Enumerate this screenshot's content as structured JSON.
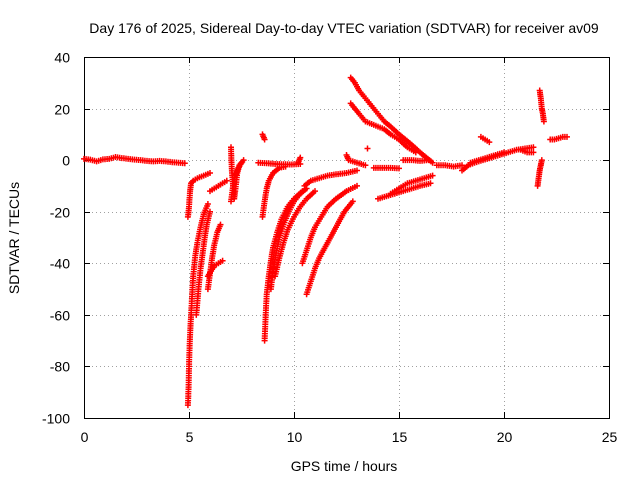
{
  "chart_data": {
    "type": "scatter",
    "title": "Day 176 of 2025, Sidereal Day-to-day VTEC variation (SDTVAR) for receiver av09",
    "xlabel": "GPS time / hours",
    "ylabel": "SDTVAR / TECUs",
    "xlim": [
      0,
      25
    ],
    "ylim": [
      -100,
      40
    ],
    "xticks": [
      "0",
      "5",
      "10",
      "15",
      "20",
      "25"
    ],
    "yticks": [
      "-100",
      "-80",
      "-60",
      "-40",
      "-20",
      "0",
      "20",
      "40"
    ],
    "grid": true,
    "marker": "+",
    "color": "#ff0000",
    "segments": [
      {
        "name": "baseline-1",
        "points": [
          [
            0.0,
            0.5
          ],
          [
            0.3,
            0.2
          ],
          [
            0.6,
            -0.5
          ],
          [
            0.9,
            0.3
          ],
          [
            1.2,
            0.5
          ],
          [
            1.5,
            1.2
          ],
          [
            1.8,
            0.8
          ],
          [
            2.1,
            0.5
          ],
          [
            2.4,
            0.2
          ],
          [
            2.7,
            0.0
          ],
          [
            3.0,
            -0.3
          ],
          [
            3.3,
            -0.5
          ],
          [
            3.6,
            -0.3
          ],
          [
            3.9,
            -0.5
          ],
          [
            4.2,
            -0.8
          ],
          [
            4.5,
            -1.0
          ],
          [
            4.8,
            -1.2
          ]
        ]
      },
      {
        "name": "dip-5h",
        "points": [
          [
            4.95,
            -95
          ],
          [
            4.98,
            -88
          ],
          [
            5.0,
            -80
          ],
          [
            5.03,
            -72
          ],
          [
            5.06,
            -66
          ],
          [
            5.1,
            -60
          ],
          [
            5.15,
            -52
          ],
          [
            5.2,
            -45
          ],
          [
            5.3,
            -37
          ],
          [
            5.4,
            -32
          ],
          [
            5.55,
            -26
          ],
          [
            5.7,
            -21
          ],
          [
            5.9,
            -17
          ]
        ]
      },
      {
        "name": "rise-5h",
        "points": [
          [
            4.95,
            -22
          ],
          [
            5.0,
            -18
          ],
          [
            5.05,
            -12
          ],
          [
            5.1,
            -9
          ],
          [
            5.2,
            -8
          ],
          [
            5.4,
            -7
          ],
          [
            5.7,
            -6
          ],
          [
            6.0,
            -5
          ]
        ]
      },
      {
        "name": "arc-5h-b",
        "points": [
          [
            5.35,
            -60
          ],
          [
            5.45,
            -50
          ],
          [
            5.55,
            -42
          ],
          [
            5.65,
            -36
          ],
          [
            5.75,
            -30
          ],
          [
            5.85,
            -25
          ],
          [
            6.0,
            -20
          ]
        ]
      },
      {
        "name": "arc-6h",
        "points": [
          [
            5.9,
            -50
          ],
          [
            6.0,
            -44
          ],
          [
            6.1,
            -38
          ],
          [
            6.2,
            -33
          ],
          [
            6.35,
            -28
          ],
          [
            6.5,
            -25
          ]
        ]
      },
      {
        "name": "arc-6h-b",
        "points": [
          [
            5.9,
            -45
          ],
          [
            6.05,
            -43
          ],
          [
            6.2,
            -41
          ],
          [
            6.4,
            -40
          ],
          [
            6.6,
            -39
          ]
        ]
      },
      {
        "name": "arc-6h-c",
        "points": [
          [
            6.0,
            -12
          ],
          [
            6.2,
            -11
          ],
          [
            6.4,
            -10
          ],
          [
            6.6,
            -9
          ],
          [
            6.8,
            -8
          ]
        ]
      },
      {
        "name": "vertical-7h",
        "points": [
          [
            7.0,
            5
          ],
          [
            7.02,
            0
          ],
          [
            7.05,
            -5
          ],
          [
            7.1,
            -10
          ],
          [
            7.15,
            -15
          ],
          [
            7.2,
            -12
          ],
          [
            7.3,
            -5
          ],
          [
            7.4,
            -2
          ],
          [
            7.6,
            0
          ]
        ]
      },
      {
        "name": "arc-7h-b",
        "points": [
          [
            7.0,
            -16
          ],
          [
            7.1,
            -10
          ],
          [
            7.2,
            -6
          ],
          [
            7.35,
            -3
          ],
          [
            7.5,
            -1
          ]
        ]
      },
      {
        "name": "flat-8h",
        "points": [
          [
            8.3,
            -1
          ],
          [
            8.7,
            -1.2
          ],
          [
            9.1,
            -1.5
          ],
          [
            9.5,
            -1.6
          ],
          [
            9.9,
            -1.7
          ],
          [
            10.3,
            -1.5
          ]
        ]
      },
      {
        "name": "point-8-6h",
        "points": [
          [
            8.5,
            10
          ],
          [
            8.6,
            8
          ]
        ]
      },
      {
        "name": "dip-8h",
        "points": [
          [
            8.6,
            -70
          ],
          [
            8.65,
            -60
          ],
          [
            8.7,
            -52
          ],
          [
            8.8,
            -45
          ],
          [
            8.9,
            -39
          ],
          [
            9.0,
            -34
          ],
          [
            9.2,
            -28
          ],
          [
            9.4,
            -23
          ],
          [
            9.7,
            -18
          ],
          [
            10.0,
            -15
          ],
          [
            10.4,
            -12
          ]
        ]
      },
      {
        "name": "dip-8h-b",
        "points": [
          [
            8.5,
            -22
          ],
          [
            8.6,
            -16
          ],
          [
            8.7,
            -11
          ],
          [
            8.8,
            -8
          ],
          [
            9.0,
            -5
          ],
          [
            9.3,
            -3
          ],
          [
            9.6,
            -2.5
          ]
        ]
      },
      {
        "name": "dip-9h",
        "points": [
          [
            8.9,
            -50
          ],
          [
            9.0,
            -43
          ],
          [
            9.15,
            -36
          ],
          [
            9.3,
            -30
          ],
          [
            9.5,
            -25
          ],
          [
            9.75,
            -20
          ],
          [
            10.0,
            -16
          ],
          [
            10.3,
            -13
          ],
          [
            10.6,
            -11
          ]
        ]
      },
      {
        "name": "dip-9h-b",
        "points": [
          [
            9.1,
            -45
          ],
          [
            9.3,
            -38
          ],
          [
            9.5,
            -32
          ],
          [
            9.7,
            -27
          ],
          [
            10.0,
            -22
          ],
          [
            10.3,
            -18
          ],
          [
            10.6,
            -15
          ],
          [
            11.0,
            -12
          ]
        ]
      },
      {
        "name": "arc-10h",
        "points": [
          [
            10.4,
            -40
          ],
          [
            10.6,
            -35
          ],
          [
            10.8,
            -30
          ],
          [
            11.0,
            -26
          ],
          [
            11.3,
            -22
          ],
          [
            11.6,
            -18
          ],
          [
            12.0,
            -15
          ],
          [
            12.5,
            -12
          ],
          [
            13.0,
            -10
          ]
        ]
      },
      {
        "name": "arc-10h-b",
        "points": [
          [
            10.6,
            -52
          ],
          [
            10.8,
            -47
          ],
          [
            11.0,
            -42
          ],
          [
            11.2,
            -38
          ],
          [
            11.4,
            -35
          ],
          [
            11.6,
            -32
          ],
          [
            12.0,
            -26
          ],
          [
            12.4,
            -20
          ],
          [
            12.8,
            -16
          ]
        ]
      },
      {
        "name": "arc-10h-c",
        "points": [
          [
            10.5,
            -10
          ],
          [
            10.8,
            -8
          ],
          [
            11.2,
            -7
          ],
          [
            11.6,
            -6
          ],
          [
            12.0,
            -5.5
          ],
          [
            12.5,
            -5
          ],
          [
            13.0,
            -4
          ]
        ]
      },
      {
        "name": "flat-10h",
        "points": [
          [
            10.2,
            -1
          ],
          [
            10.3,
            1
          ]
        ]
      },
      {
        "name": "peak-12-7h",
        "points": [
          [
            12.7,
            32
          ],
          [
            12.9,
            30
          ],
          [
            13.1,
            27
          ],
          [
            13.4,
            24
          ],
          [
            13.7,
            21
          ],
          [
            14.0,
            18
          ],
          [
            14.3,
            15
          ],
          [
            14.6,
            13
          ],
          [
            15.0,
            10
          ],
          [
            15.3,
            8
          ],
          [
            15.6,
            6
          ],
          [
            16.0,
            3
          ],
          [
            16.3,
            1
          ],
          [
            16.6,
            -1
          ]
        ]
      },
      {
        "name": "peak-12-7h-b",
        "points": [
          [
            12.7,
            22
          ],
          [
            12.9,
            20
          ],
          [
            13.1,
            18
          ],
          [
            13.4,
            15
          ],
          [
            13.7,
            14
          ],
          [
            14.0,
            13
          ],
          [
            14.3,
            12
          ],
          [
            14.6,
            10
          ],
          [
            15.0,
            8
          ],
          [
            15.4,
            5
          ],
          [
            15.8,
            3
          ]
        ]
      },
      {
        "name": "flat-13h",
        "points": [
          [
            12.5,
            2
          ],
          [
            12.6,
            0
          ],
          [
            13.0,
            -1
          ],
          [
            13.4,
            -2
          ]
        ]
      },
      {
        "name": "point-13-5h",
        "points": [
          [
            13.5,
            4.5
          ]
        ]
      },
      {
        "name": "flat-14h",
        "points": [
          [
            13.8,
            -3
          ],
          [
            14.2,
            -3
          ],
          [
            14.6,
            -3
          ],
          [
            15.0,
            -3.2
          ]
        ]
      },
      {
        "name": "arc-14h",
        "points": [
          [
            14.0,
            -15
          ],
          [
            14.4,
            -14
          ],
          [
            14.8,
            -13
          ],
          [
            15.2,
            -12
          ],
          [
            15.6,
            -11
          ],
          [
            16.0,
            -10
          ],
          [
            16.5,
            -9
          ]
        ]
      },
      {
        "name": "arc-14h-b",
        "points": [
          [
            14.6,
            -13
          ],
          [
            15.0,
            -11
          ],
          [
            15.4,
            -9
          ],
          [
            15.8,
            -8
          ],
          [
            16.2,
            -7
          ],
          [
            16.6,
            -6
          ]
        ]
      },
      {
        "name": "flat-15h",
        "points": [
          [
            15.2,
            0
          ],
          [
            15.6,
            0
          ],
          [
            16.0,
            -0.3
          ],
          [
            16.4,
            0
          ]
        ]
      },
      {
        "name": "flat-17h",
        "points": [
          [
            16.8,
            -2
          ],
          [
            17.2,
            -2
          ],
          [
            17.6,
            -2.5
          ],
          [
            18.0,
            -2
          ]
        ]
      },
      {
        "name": "rise-18h",
        "points": [
          [
            18.0,
            -4
          ],
          [
            18.3,
            -2
          ],
          [
            18.6,
            -1
          ],
          [
            19.0,
            0
          ],
          [
            19.4,
            1
          ],
          [
            19.8,
            2
          ],
          [
            20.2,
            3
          ],
          [
            20.6,
            4
          ],
          [
            21.0,
            4.5
          ],
          [
            21.4,
            5
          ]
        ]
      },
      {
        "name": "rise-18h-b",
        "points": [
          [
            18.4,
            -1
          ],
          [
            18.8,
            0
          ],
          [
            19.2,
            1
          ],
          [
            19.6,
            2
          ],
          [
            20.0,
            3
          ]
        ]
      },
      {
        "name": "point-19h",
        "points": [
          [
            18.9,
            9
          ],
          [
            19.1,
            8
          ],
          [
            19.3,
            7
          ]
        ]
      },
      {
        "name": "spike-21-7h",
        "points": [
          [
            21.7,
            27
          ],
          [
            21.75,
            24
          ],
          [
            21.8,
            20
          ],
          [
            21.85,
            18
          ],
          [
            21.9,
            15
          ]
        ]
      },
      {
        "name": "spike-21-7h-b",
        "points": [
          [
            21.6,
            -10
          ],
          [
            21.65,
            -7
          ],
          [
            21.7,
            -4
          ],
          [
            21.75,
            -2
          ],
          [
            21.8,
            0
          ]
        ]
      },
      {
        "name": "tail-22h",
        "points": [
          [
            22.2,
            8
          ],
          [
            22.4,
            8
          ],
          [
            22.6,
            8.5
          ],
          [
            22.8,
            9
          ],
          [
            23.0,
            9
          ]
        ]
      },
      {
        "name": "flat-21h",
        "points": [
          [
            20.8,
            4
          ],
          [
            21.1,
            3
          ],
          [
            21.4,
            3
          ]
        ]
      }
    ]
  }
}
